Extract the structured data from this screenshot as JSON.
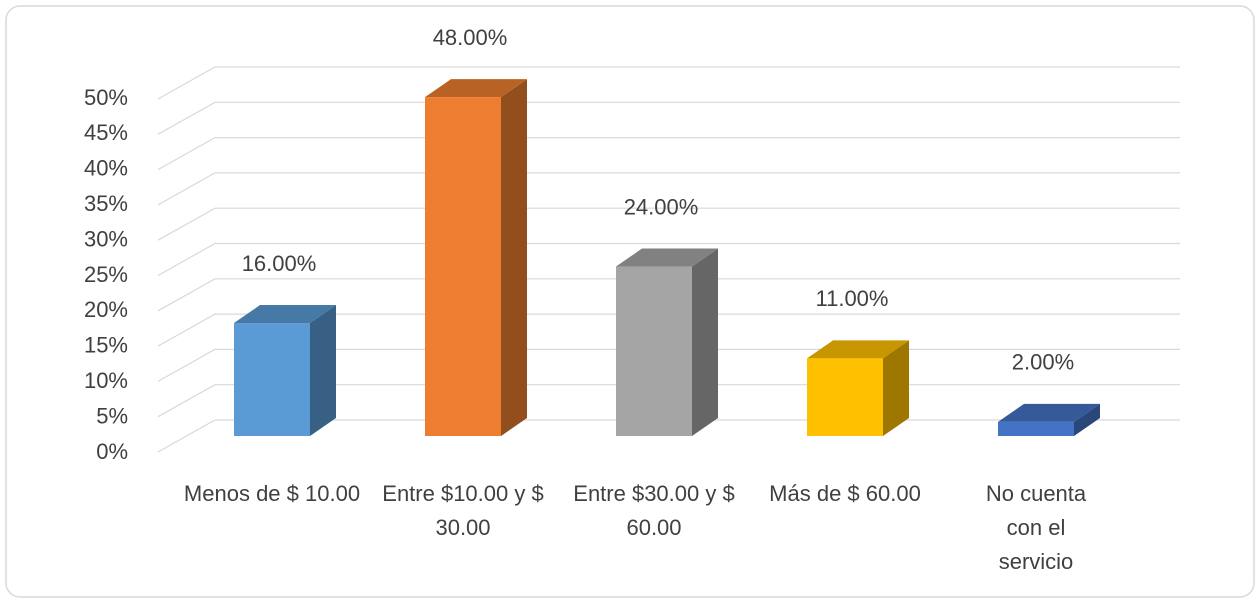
{
  "chart_data": {
    "type": "bar3d",
    "categories": [
      "Menos de $ 10.00",
      "Entre $10.00 y $ 30.00",
      "Entre $30.00 y $ 60.00",
      "Más de $ 60.00",
      "No cuenta con el servicio"
    ],
    "values": [
      16,
      48,
      24,
      11,
      2
    ],
    "value_labels": [
      "16.00%",
      "48.00%",
      "24.00%",
      "11.00%",
      "2.00%"
    ],
    "colors": [
      "#5b9bd5",
      "#ed7d31",
      "#a5a5a5",
      "#ffc000",
      "#4472c4"
    ],
    "ylim": [
      0,
      50
    ],
    "yticks": [
      {
        "value": 0,
        "label": "0%"
      },
      {
        "value": 5,
        "label": "5%"
      },
      {
        "value": 10,
        "label": "10%"
      },
      {
        "value": 15,
        "label": "15%"
      },
      {
        "value": 20,
        "label": "20%"
      },
      {
        "value": 25,
        "label": "25%"
      },
      {
        "value": 30,
        "label": "30%"
      },
      {
        "value": 35,
        "label": "35%"
      },
      {
        "value": 40,
        "label": "40%"
      },
      {
        "value": 45,
        "label": "45%"
      },
      {
        "value": 50,
        "label": "50%"
      }
    ],
    "grid": true
  }
}
